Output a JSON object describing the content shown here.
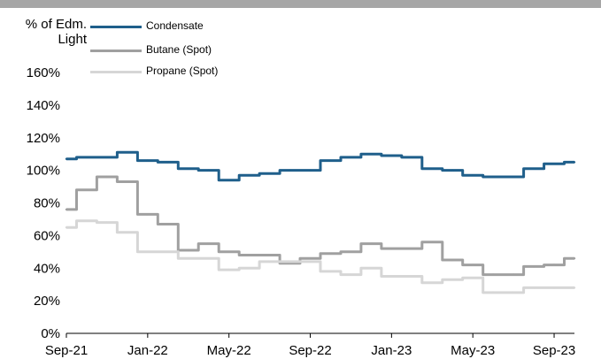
{
  "chart_data": {
    "type": "line",
    "ylabel": "% of Edm.\nLight",
    "y_ticks": [
      "0%",
      "20%",
      "40%",
      "60%",
      "80%",
      "100%",
      "120%",
      "140%",
      "160%"
    ],
    "ylim": [
      0,
      160
    ],
    "x_ticks": [
      "Sep-21",
      "Jan-22",
      "May-22",
      "Sep-22",
      "Jan-23",
      "May-23",
      "Sep-23"
    ],
    "x": [
      "2021-09",
      "2021-10",
      "2021-11",
      "2021-12",
      "2022-01",
      "2022-02",
      "2022-03",
      "2022-04",
      "2022-05",
      "2022-06",
      "2022-07",
      "2022-08",
      "2022-09",
      "2022-10",
      "2022-11",
      "2022-12",
      "2023-01",
      "2023-02",
      "2023-03",
      "2023-04",
      "2023-05",
      "2023-06",
      "2023-07",
      "2023-08",
      "2023-09",
      "2023-10"
    ],
    "series": [
      {
        "name": "Condensate",
        "color": "#1f5f8b",
        "values": [
          107,
          108,
          108,
          111,
          106,
          105,
          101,
          100,
          94,
          97,
          98,
          100,
          100,
          106,
          108,
          110,
          109,
          108,
          101,
          100,
          97,
          96,
          96,
          101,
          104,
          105
        ]
      },
      {
        "name": "Butane (Spot)",
        "color": "#a0a0a0",
        "values": [
          76,
          88,
          96,
          93,
          73,
          67,
          51,
          55,
          50,
          48,
          48,
          43,
          46,
          49,
          50,
          55,
          52,
          52,
          56,
          45,
          42,
          36,
          36,
          41,
          42,
          46
        ]
      },
      {
        "name": "Propane (Spot)",
        "color": "#d6d6d6",
        "values": [
          65,
          69,
          68,
          62,
          50,
          50,
          46,
          46,
          39,
          40,
          44,
          44,
          44,
          38,
          36,
          40,
          35,
          35,
          31,
          33,
          34,
          25,
          25,
          28,
          28,
          28
        ]
      }
    ],
    "legend_position": "top-center",
    "grid": false
  }
}
